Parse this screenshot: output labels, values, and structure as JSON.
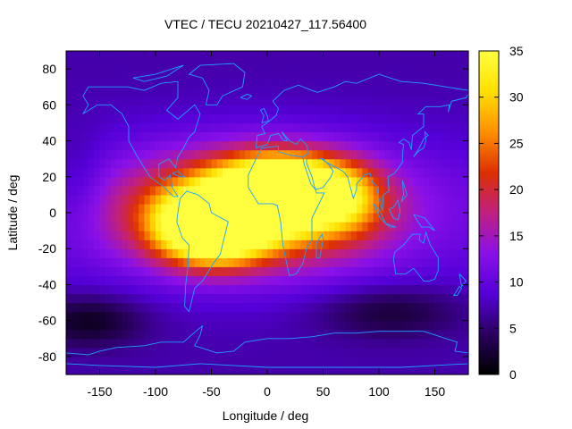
{
  "chart_data": {
    "type": "heatmap",
    "title": "VTEC / TECU 20210427_117.56400",
    "xlabel": "Longitude / deg",
    "ylabel": "Latitude / deg",
    "xlim": [
      -180,
      180
    ],
    "ylim": [
      -90,
      90
    ],
    "x_ticks": [
      -150,
      -100,
      -50,
      0,
      50,
      100,
      150
    ],
    "y_ticks": [
      -80,
      -60,
      -40,
      -20,
      0,
      20,
      40,
      60,
      80
    ],
    "colorbar": {
      "range": [
        0,
        35
      ],
      "ticks": [
        0,
        5,
        10,
        15,
        20,
        25,
        30,
        35
      ],
      "palette": [
        "#000000",
        "#2a0060",
        "#5500d8",
        "#8a10e8",
        "#c02080",
        "#dd3000",
        "#ff9000",
        "#ffe000",
        "#ffff40"
      ]
    },
    "grid_step_deg": 5,
    "background_vtec": 7,
    "features": [
      {
        "name": "equatorial-crest-north",
        "lon": 15,
        "lat": 12,
        "peak": 35,
        "sigma_lon": 38,
        "sigma_lat": 13
      },
      {
        "name": "equatorial-crest-south",
        "lon": -50,
        "lat": -8,
        "peak": 33,
        "sigma_lon": 32,
        "sigma_lat": 13
      },
      {
        "name": "equatorial-band",
        "lon": -15,
        "lat": 2,
        "peak": 22,
        "sigma_lon": 80,
        "sigma_lat": 22
      },
      {
        "name": "east-tail",
        "lon": 75,
        "lat": 8,
        "peak": 7,
        "sigma_lon": 22,
        "sigma_lat": 14
      },
      {
        "name": "southern-trough",
        "lon": -160,
        "lat": -60,
        "peak": -6,
        "sigma_lon": 35,
        "sigma_lat": 10
      },
      {
        "name": "southern-trough-east",
        "lon": 110,
        "lat": -55,
        "peak": -5,
        "sigma_lon": 45,
        "sigma_lat": 10
      },
      {
        "name": "pacific-low",
        "lon": -170,
        "lat": 15,
        "peak": -3,
        "sigma_lon": 20,
        "sigma_lat": 20
      }
    ],
    "coastlines_color": "#1ea0ff"
  }
}
